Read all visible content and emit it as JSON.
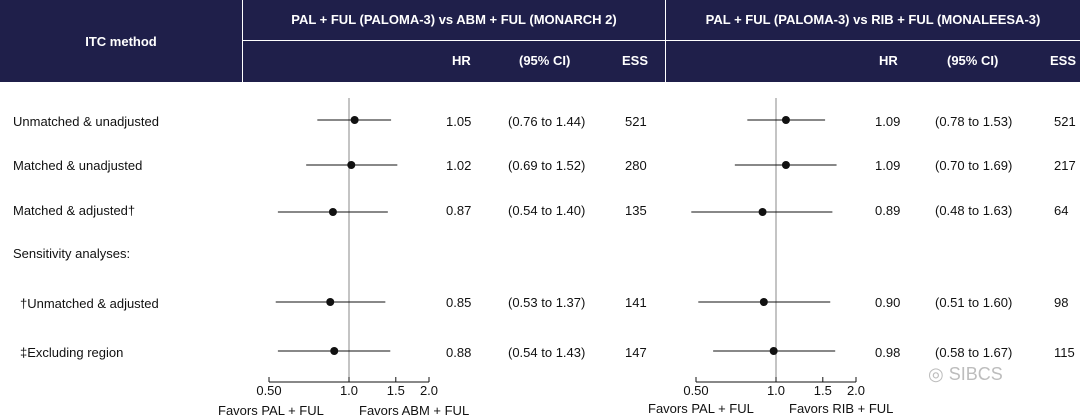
{
  "header": {
    "itc_method": "ITC method",
    "group1_title": "PAL + FUL (PALOMA-3) vs ABM + FUL (MONARCH 2)",
    "group2_title": "PAL + FUL (PALOMA-3) vs RIB + FUL (MONALEESA-3)",
    "hr": "HR",
    "ci": "(95% CI)",
    "ess": "ESS"
  },
  "rows": [
    {
      "label": "Unmatched & unadjusted",
      "hr1": "1.05",
      "ci1": "(0.76 to 1.44)",
      "ess1": "521",
      "hr2": "1.09",
      "ci2": "(0.78 to 1.53)",
      "ess2": "521"
    },
    {
      "label": "Matched & unadjusted",
      "hr1": "1.02",
      "ci1": "(0.69 to 1.52)",
      "ess1": "280",
      "hr2": "1.09",
      "ci2": "(0.70 to 1.69)",
      "ess2": "217"
    },
    {
      "label": "Matched & adjusted†",
      "hr1": "0.87",
      "ci1": "(0.54 to 1.40)",
      "ess1": "135",
      "hr2": "0.89",
      "ci2": "(0.48 to 1.63)",
      "ess2": "64"
    },
    {
      "label": "Sensitivity analyses:"
    },
    {
      "label": "†Unmatched & adjusted",
      "hr1": "0.85",
      "ci1": "(0.53 to 1.37)",
      "ess1": "141",
      "hr2": "0.90",
      "ci2": "(0.51 to 1.60)",
      "ess2": "98"
    },
    {
      "label": "‡Excluding region",
      "hr1": "0.88",
      "ci1": "(0.54 to 1.43)",
      "ess1": "147",
      "hr2": "0.98",
      "ci2": "(0.58 to 1.67)",
      "ess2": "115"
    }
  ],
  "chart_data": [
    {
      "type": "forest",
      "title": "PAL + FUL (PALOMA-3) vs ABM + FUL (MONARCH 2)",
      "scale": "log",
      "xlim": [
        0.5,
        2.0
      ],
      "reference_line": 1.0,
      "ticks": [
        "0.50",
        "1.0",
        "1.5",
        "2.0"
      ],
      "tick_values": [
        0.5,
        1.0,
        1.5,
        2.0
      ],
      "favors_left": "Favors PAL + FUL",
      "favors_right": "Favors ABM + FUL",
      "points": [
        {
          "hr": 1.05,
          "lo": 0.76,
          "hi": 1.44
        },
        {
          "hr": 1.02,
          "lo": 0.69,
          "hi": 1.52
        },
        {
          "hr": 0.87,
          "lo": 0.54,
          "hi": 1.4
        },
        {
          "hr": 0.85,
          "lo": 0.53,
          "hi": 1.37
        },
        {
          "hr": 0.88,
          "lo": 0.54,
          "hi": 1.43
        }
      ]
    },
    {
      "type": "forest",
      "title": "PAL + FUL (PALOMA-3) vs RIB + FUL (MONALEESA-3)",
      "scale": "log",
      "xlim": [
        0.5,
        2.0
      ],
      "reference_line": 1.0,
      "ticks": [
        "0.50",
        "1.0",
        "1.5",
        "2.0"
      ],
      "tick_values": [
        0.5,
        1.0,
        1.5,
        2.0
      ],
      "favors_left": "Favors PAL + FUL",
      "favors_right": "Favors RIB + FUL",
      "points": [
        {
          "hr": 1.09,
          "lo": 0.78,
          "hi": 1.53
        },
        {
          "hr": 1.09,
          "lo": 0.7,
          "hi": 1.69
        },
        {
          "hr": 0.89,
          "lo": 0.48,
          "hi": 1.63
        },
        {
          "hr": 0.9,
          "lo": 0.51,
          "hi": 1.6
        },
        {
          "hr": 0.98,
          "lo": 0.58,
          "hi": 1.67
        }
      ]
    }
  ],
  "watermark": "SIBCS",
  "colors": {
    "header_bg": "#1f1f4a",
    "header_text": "#ffffff",
    "marker": "#111111",
    "reference_line": "#888888"
  }
}
